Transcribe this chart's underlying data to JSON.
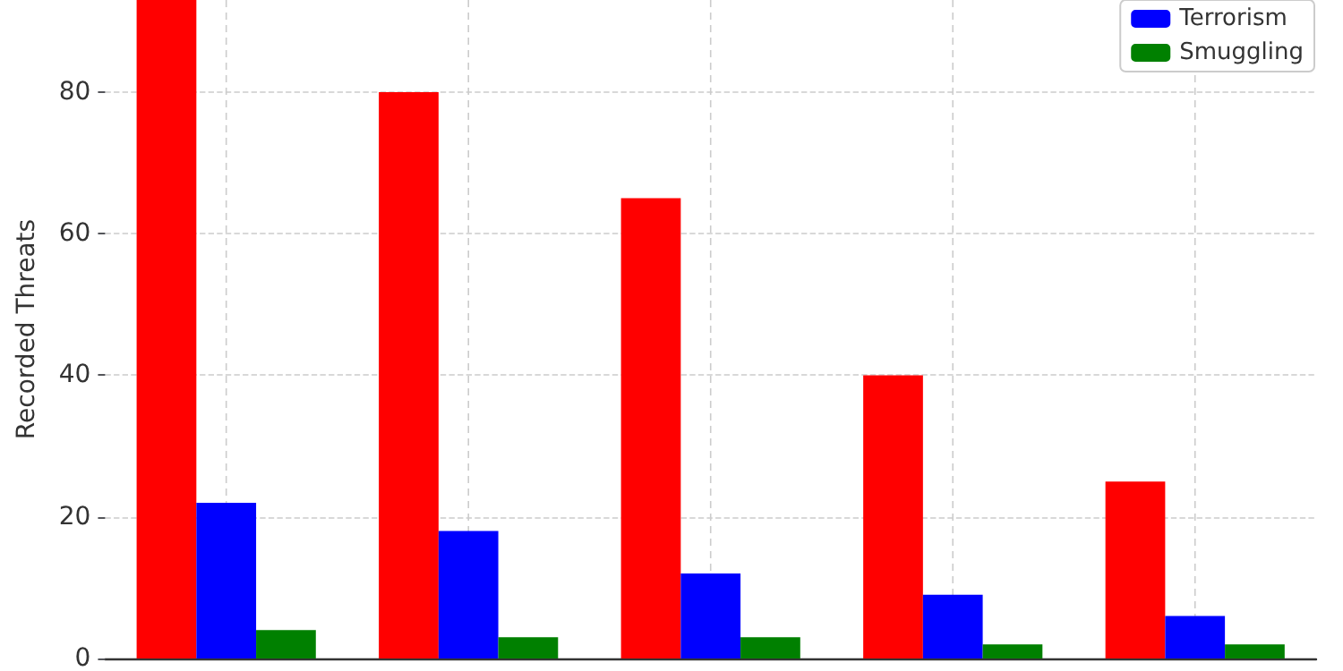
{
  "chart_data": {
    "type": "bar",
    "ylabel": "Recorded Threats",
    "categories": [
      null,
      null,
      null,
      null,
      null
    ],
    "series": [
      {
        "color": "#ff0000",
        "values": [
          93,
          80,
          65,
          40,
          25
        ]
      },
      {
        "name": "Terrorism",
        "color": "#0000ff",
        "values": [
          22,
          18,
          12,
          9,
          6
        ]
      },
      {
        "name": "Smuggling",
        "color": "#008000",
        "values": [
          4,
          3,
          3,
          2,
          2
        ]
      }
    ],
    "ylim": [
      0,
      93
    ],
    "yticks": [
      0,
      20,
      40,
      60,
      80
    ],
    "grid": true,
    "legend": "top right",
    "tick_labels": "y"
  }
}
